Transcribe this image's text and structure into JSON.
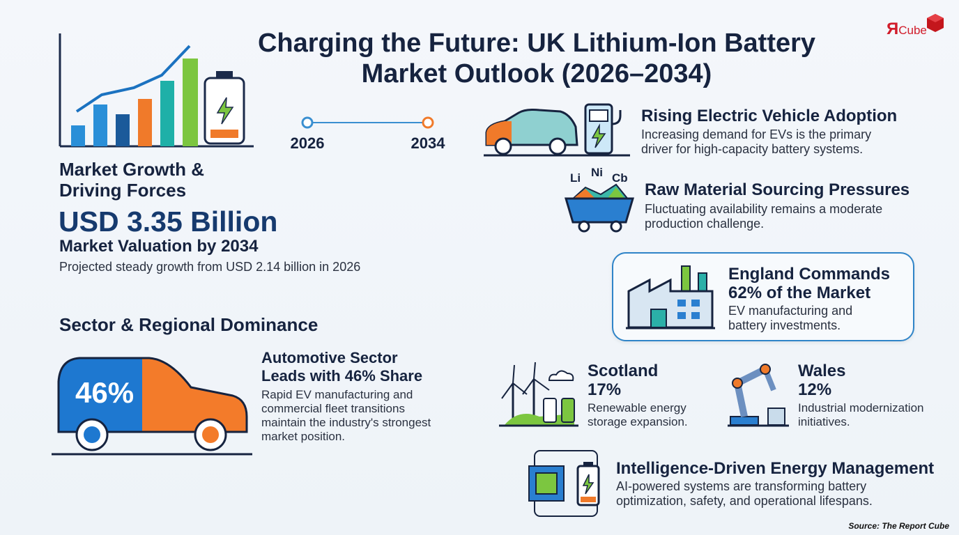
{
  "logo": {
    "mark": "Я",
    "name": "Cube"
  },
  "title": {
    "line1": "Charging the Future: UK Lithium-Ion Battery",
    "line2": "Market Outlook (2026–2034)"
  },
  "timeline": {
    "start": "2026",
    "end": "2034"
  },
  "market": {
    "heading": "Market Growth & Driving Forces",
    "valuation": "USD 3.35 Billion",
    "valuation_label": "Market Valuation by 2034",
    "note": "Projected steady growth from USD 2.14 billion in 2026"
  },
  "sector": {
    "heading": "Sector & Regional Dominance",
    "share_badge": "46%",
    "title": "Automotive Sector Leads with 46% Share",
    "text": "Rapid EV manufacturing and commercial fleet transitions maintain the industry's strongest market position."
  },
  "drivers": [
    {
      "title": "Rising Electric Vehicle Adoption",
      "text": "Increasing demand for EVs is the primary driver for high-capacity battery systems."
    },
    {
      "title": "Raw Material Sourcing Pressures",
      "text": "Fluctuating availability remains a moderate production challenge.",
      "icon_labels": [
        "Li",
        "Ni",
        "Cb"
      ]
    }
  ],
  "regions": [
    {
      "title": "England Commands 62% of the Market",
      "text": "EV manufacturing and battery investments."
    },
    {
      "name": "Scotland",
      "share": "17%",
      "text": "Renewable energy storage expansion."
    },
    {
      "name": "Wales",
      "share": "12%",
      "text": "Industrial modernization initiatives."
    }
  ],
  "intelligence": {
    "title": "Intelligence-Driven Energy Management",
    "text": "AI-powered systems are transforming battery optimization, safety, and operational lifespans."
  },
  "source": "Source: The Report Cube"
}
